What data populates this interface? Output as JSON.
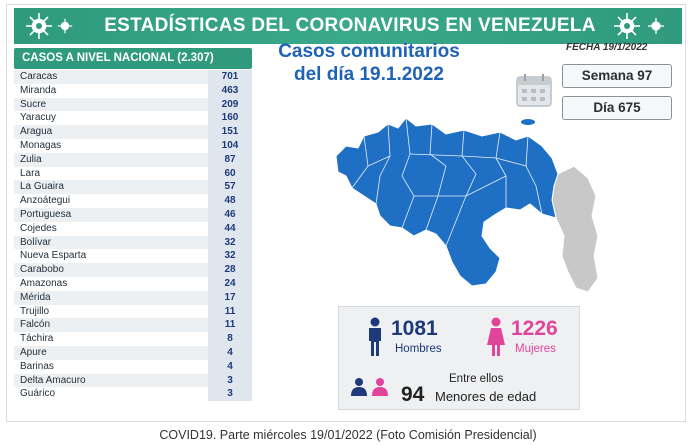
{
  "header": {
    "title": "ESTADÍSTICAS DEL CORONAVIRUS EN VENEZUELA",
    "icon": "virus-icon",
    "color": "#2f9a7e"
  },
  "table": {
    "title": "CASOS A NIVEL NACIONAL (2.307)",
    "rows": [
      {
        "state": "Caracas",
        "cases": "701"
      },
      {
        "state": "Miranda",
        "cases": "463"
      },
      {
        "state": "Sucre",
        "cases": "209"
      },
      {
        "state": "Yaracuy",
        "cases": "160"
      },
      {
        "state": "Aragua",
        "cases": "151"
      },
      {
        "state": "Monagas",
        "cases": "104"
      },
      {
        "state": "Zulia",
        "cases": "87"
      },
      {
        "state": "Lara",
        "cases": "60"
      },
      {
        "state": "La Guaira",
        "cases": "57"
      },
      {
        "state": "Anzoátegui",
        "cases": "48"
      },
      {
        "state": "Portuguesa",
        "cases": "46"
      },
      {
        "state": "Cojedes",
        "cases": "44"
      },
      {
        "state": "Bolívar",
        "cases": "32"
      },
      {
        "state": "Nueva Esparta",
        "cases": "32"
      },
      {
        "state": "Carabobo",
        "cases": "28"
      },
      {
        "state": "Amazonas",
        "cases": "24"
      },
      {
        "state": "Mérida",
        "cases": "17"
      },
      {
        "state": "Trujillo",
        "cases": "11"
      },
      {
        "state": "Falcón",
        "cases": "11"
      },
      {
        "state": "Táchira",
        "cases": "8"
      },
      {
        "state": "Apure",
        "cases": "4"
      },
      {
        "state": "Barinas",
        "cases": "4"
      },
      {
        "state": "Delta Amacuro",
        "cases": "3"
      },
      {
        "state": "Guárico",
        "cases": "3"
      }
    ]
  },
  "community": {
    "line1": "Casos comunitarios",
    "line2": "del día 19.1.2022"
  },
  "fecha": "FECHA 19/1/2022",
  "semana": "Semana 97",
  "dia": "Día 675",
  "stats": {
    "hombres_count": "1081",
    "hombres_label": "Hombres",
    "mujeres_count": "1226",
    "mujeres_label": "Mujeres",
    "entre_ellos": "Entre ellos",
    "menores_count": "94",
    "menores_label": "Menores de edad",
    "colors": {
      "male": "#1e3a7a",
      "female": "#e0459a"
    }
  },
  "caption": "COVID19. Parte miércoles 19/01/2022 (Foto Comisión Presidencial)"
}
